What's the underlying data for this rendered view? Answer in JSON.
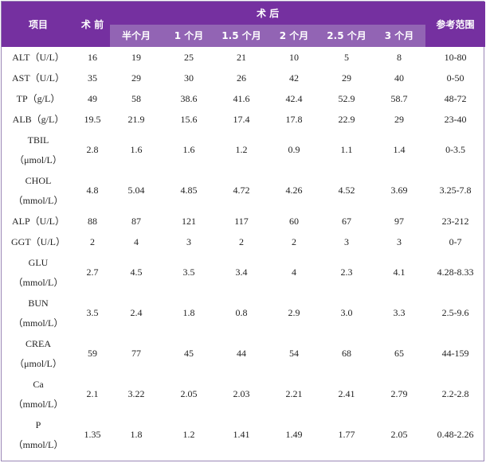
{
  "header": {
    "item_label": "项目",
    "pre_label": "术 前",
    "post_label": "术 后",
    "ref_label": "参考范围",
    "months": [
      "半个月",
      "1 个月",
      "1.5 个月",
      "2 个月",
      "2.5 个月",
      "3 个月"
    ]
  },
  "rows": [
    {
      "name": "ALT（U/L）",
      "unit": "",
      "pre": "16",
      "post": [
        "19",
        "25",
        "21",
        "10",
        "5",
        "8"
      ],
      "ref": "10-80"
    },
    {
      "name": "AST（U/L）",
      "unit": "",
      "pre": "35",
      "post": [
        "29",
        "30",
        "26",
        "42",
        "29",
        "40"
      ],
      "ref": "0-50"
    },
    {
      "name": "TP（g/L）",
      "unit": "",
      "pre": "49",
      "post": [
        "58",
        "38.6",
        "41.6",
        "42.4",
        "52.9",
        "58.7"
      ],
      "ref": "48-72"
    },
    {
      "name": "ALB（g/L）",
      "unit": "",
      "pre": "19.5",
      "post": [
        "21.9",
        "15.6",
        "17.4",
        "17.8",
        "22.9",
        "29"
      ],
      "ref": "23-40"
    },
    {
      "name": "TBIL",
      "unit": "（μmol/L）",
      "pre": "2.8",
      "post": [
        "1.6",
        "1.6",
        "1.2",
        "0.9",
        "1.1",
        "1.4"
      ],
      "ref": "0-3.5"
    },
    {
      "name": "CHOL",
      "unit": "（mmol/L）",
      "pre": "4.8",
      "post": [
        "5.04",
        "4.85",
        "4.72",
        "4.26",
        "4.52",
        "3.69"
      ],
      "ref": "3.25-7.8"
    },
    {
      "name": "ALP（U/L）",
      "unit": "",
      "pre": "88",
      "post": [
        "87",
        "121",
        "117",
        "60",
        "67",
        "97"
      ],
      "ref": "23-212"
    },
    {
      "name": "GGT（U/L）",
      "unit": "",
      "pre": "2",
      "post": [
        "4",
        "3",
        "2",
        "2",
        "3",
        "3"
      ],
      "ref": "0-7"
    },
    {
      "name": "GLU",
      "unit": "（mmol/L）",
      "pre": "2.7",
      "post": [
        "4.5",
        "3.5",
        "3.4",
        "4",
        "2.3",
        "4.1"
      ],
      "ref": "4.28-8.33"
    },
    {
      "name": "BUN",
      "unit": "（mmol/L）",
      "pre": "3.5",
      "post": [
        "2.4",
        "1.8",
        "0.8",
        "2.9",
        "3.0",
        "3.3"
      ],
      "ref": "2.5-9.6"
    },
    {
      "name": "CREA",
      "unit": "（μmol/L）",
      "pre": "59",
      "post": [
        "77",
        "45",
        "44",
        "54",
        "68",
        "65"
      ],
      "ref": "44-159"
    },
    {
      "name": "Ca",
      "unit": "（mmol/L）",
      "pre": "2.1",
      "post": [
        "3.22",
        "2.05",
        "2.03",
        "2.21",
        "2.41",
        "2.79"
      ],
      "ref": "2.2-2.8"
    },
    {
      "name": "P",
      "unit": "（mmol/L）",
      "pre": "1.35",
      "post": [
        "1.8",
        "1.2",
        "1.41",
        "1.49",
        "1.77",
        "2.05"
      ],
      "ref": "0.48-2.26"
    }
  ]
}
